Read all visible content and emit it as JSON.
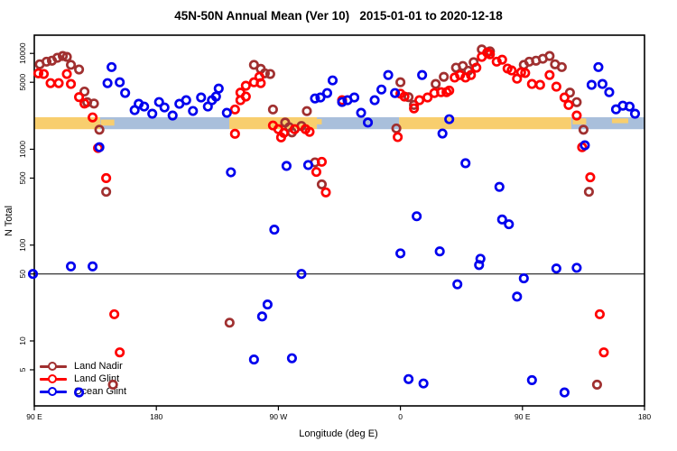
{
  "title": "45N-50N Annual Mean (Ver 10)   2015-01-01 to 2020-12-18",
  "colors": {
    "land_nadir": "#A03030",
    "land_glint": "#FF0000",
    "ocean_glint": "#0000EE",
    "land_band": "#F8CE6E",
    "ocean_band": "#A9BFDB",
    "frame": "#000000",
    "reference_line": "#000000"
  },
  "legend": {
    "items": [
      {
        "label": "Land Nadir",
        "color": "#A03030"
      },
      {
        "label": "Land Glint",
        "color": "#FF0000"
      },
      {
        "label": "Ocean Glint",
        "color": "#0000EE"
      }
    ]
  },
  "chart_data": {
    "type": "scatter",
    "title": "45N-50N Annual Mean (Ver 10)   2015-01-01 to 2020-12-18",
    "xlabel": "Longitude (deg E)",
    "ylabel": "N Total",
    "x_axis": {
      "unit": "deg E",
      "range": [
        90,
        540
      ],
      "ticks": [
        {
          "value": 90,
          "label": "90 E"
        },
        {
          "value": 180,
          "label": "180"
        },
        {
          "value": 270,
          "label": "90 W"
        },
        {
          "value": 360,
          "label": "0"
        },
        {
          "value": 450,
          "label": "90 E"
        },
        {
          "value": 540,
          "label": "180"
        }
      ]
    },
    "y_axis": {
      "scale": "log",
      "range": [
        2.1,
        15500
      ],
      "ticks": [
        5,
        10,
        50,
        100,
        500,
        1000,
        5000,
        10000
      ]
    },
    "reference_line_y": 50,
    "surface_bands": {
      "value_range": [
        1620,
        2160
      ],
      "land_segments_deg": [
        [
          90,
          138.6
        ],
        [
          233.8,
          298.4
        ],
        [
          359,
          486
        ]
      ],
      "ocean_segments_deg": [
        [
          138.6,
          233.8
        ],
        [
          298.4,
          359
        ],
        [
          486,
          540
        ]
      ],
      "land_fragments": [
        {
          "lon": [
            139,
            149
          ],
          "frac": [
            0.2,
            0.7
          ]
        },
        {
          "lon": [
            296,
            302
          ],
          "frac": [
            0.15,
            0.6
          ]
        },
        {
          "lon": [
            487,
            497
          ],
          "frac": [
            0.1,
            0.6
          ]
        },
        {
          "lon": [
            516,
            528
          ],
          "frac": [
            0.1,
            0.5
          ]
        }
      ]
    },
    "series": [
      {
        "name": "Land Nadir",
        "color": "#A03030",
        "points": [
          [
            94,
            7700
          ],
          [
            99,
            8200
          ],
          [
            103,
            8400
          ],
          [
            107,
            9000
          ],
          [
            111,
            9400
          ],
          [
            114,
            9200
          ],
          [
            117,
            7600
          ],
          [
            123,
            6800
          ],
          [
            127,
            4000
          ],
          [
            129,
            3100
          ],
          [
            134,
            3000
          ],
          [
            138,
            1600
          ],
          [
            143,
            360
          ],
          [
            148,
            3.5
          ],
          [
            234,
            15.5
          ],
          [
            252,
            7600
          ],
          [
            257,
            6900
          ],
          [
            260,
            6200
          ],
          [
            264,
            6100
          ],
          [
            266,
            2600
          ],
          [
            275,
            1900
          ],
          [
            278,
            1700
          ],
          [
            280,
            1500
          ],
          [
            287,
            1750
          ],
          [
            291,
            2500
          ],
          [
            297,
            730
          ],
          [
            302,
            430
          ],
          [
            357,
            1650
          ],
          [
            360,
            5000
          ],
          [
            366,
            3500
          ],
          [
            370,
            2900
          ],
          [
            386,
            4800
          ],
          [
            392,
            5700
          ],
          [
            401,
            7100
          ],
          [
            406,
            7400
          ],
          [
            410,
            6600
          ],
          [
            414,
            8100
          ],
          [
            420,
            11000
          ],
          [
            426,
            10500
          ],
          [
            451,
            7600
          ],
          [
            455,
            8200
          ],
          [
            460,
            8400
          ],
          [
            465,
            8800
          ],
          [
            470,
            9400
          ],
          [
            474,
            7700
          ],
          [
            479,
            7200
          ],
          [
            485,
            3900
          ],
          [
            490,
            3100
          ],
          [
            495,
            1600
          ],
          [
            499,
            360
          ],
          [
            505,
            3.5
          ]
        ]
      },
      {
        "name": "Land Glint",
        "color": "#FF0000",
        "points": [
          [
            93,
            6200
          ],
          [
            97,
            6100
          ],
          [
            102,
            4900
          ],
          [
            108,
            4900
          ],
          [
            114,
            6100
          ],
          [
            117,
            4800
          ],
          [
            123,
            3500
          ],
          [
            127,
            3000
          ],
          [
            133,
            2150
          ],
          [
            137,
            1030
          ],
          [
            143,
            500
          ],
          [
            149,
            19
          ],
          [
            153,
            7.6
          ],
          [
            238,
            2600
          ],
          [
            238,
            1450
          ],
          [
            242,
            3900
          ],
          [
            242,
            3250
          ],
          [
            246,
            4600
          ],
          [
            246,
            3550
          ],
          [
            252,
            5000
          ],
          [
            256,
            5700
          ],
          [
            257,
            4900
          ],
          [
            266,
            1770
          ],
          [
            270,
            1620
          ],
          [
            272,
            1330
          ],
          [
            274,
            1480
          ],
          [
            282,
            1620
          ],
          [
            290,
            1620
          ],
          [
            293,
            1520
          ],
          [
            298,
            580
          ],
          [
            302,
            740
          ],
          [
            305,
            355
          ],
          [
            317,
            3250
          ],
          [
            358,
            1340
          ],
          [
            360,
            3800
          ],
          [
            363,
            3550
          ],
          [
            370,
            2670
          ],
          [
            374,
            3250
          ],
          [
            380,
            3470
          ],
          [
            385,
            3860
          ],
          [
            390,
            3940
          ],
          [
            394,
            3940
          ],
          [
            396,
            4100
          ],
          [
            400,
            5600
          ],
          [
            404,
            5950
          ],
          [
            408,
            5600
          ],
          [
            412,
            5950
          ],
          [
            416,
            7100
          ],
          [
            420,
            9200
          ],
          [
            424,
            10200
          ],
          [
            426,
            9800
          ],
          [
            431,
            8200
          ],
          [
            435,
            8600
          ],
          [
            439,
            6950
          ],
          [
            442,
            6650
          ],
          [
            446,
            5450
          ],
          [
            449,
            6350
          ],
          [
            452,
            6250
          ],
          [
            457,
            4800
          ],
          [
            463,
            4700
          ],
          [
            470,
            5950
          ],
          [
            475,
            4500
          ],
          [
            481,
            3470
          ],
          [
            484,
            2900
          ],
          [
            490,
            2250
          ],
          [
            494,
            1050
          ],
          [
            500,
            510
          ],
          [
            507,
            19
          ],
          [
            510,
            7.6
          ]
        ]
      },
      {
        "name": "Ocean Glint",
        "color": "#0000EE",
        "points": [
          [
            89,
            50
          ],
          [
            117,
            60
          ],
          [
            123,
            2.9
          ],
          [
            133,
            60
          ],
          [
            138,
            1050
          ],
          [
            144,
            4900
          ],
          [
            147,
            7200
          ],
          [
            153,
            5000
          ],
          [
            157,
            3870
          ],
          [
            164,
            2560
          ],
          [
            167,
            2980
          ],
          [
            171,
            2790
          ],
          [
            177,
            2350
          ],
          [
            182,
            3110
          ],
          [
            186,
            2730
          ],
          [
            192,
            2250
          ],
          [
            197,
            2980
          ],
          [
            202,
            3250
          ],
          [
            207,
            2510
          ],
          [
            213,
            3470
          ],
          [
            218,
            2790
          ],
          [
            221,
            3250
          ],
          [
            224,
            3550
          ],
          [
            226,
            4300
          ],
          [
            232,
            2400
          ],
          [
            235,
            575
          ],
          [
            252,
            6.4
          ],
          [
            258,
            18
          ],
          [
            262,
            24
          ],
          [
            267,
            145
          ],
          [
            276,
            670
          ],
          [
            280,
            6.6
          ],
          [
            287,
            50
          ],
          [
            292,
            685
          ],
          [
            297,
            3390
          ],
          [
            301,
            3470
          ],
          [
            306,
            3860
          ],
          [
            310,
            5230
          ],
          [
            317,
            3110
          ],
          [
            321,
            3250
          ],
          [
            326,
            3470
          ],
          [
            331,
            2400
          ],
          [
            336,
            1900
          ],
          [
            341,
            3250
          ],
          [
            346,
            4200
          ],
          [
            351,
            5950
          ],
          [
            356,
            3860
          ],
          [
            360,
            82
          ],
          [
            366,
            4.0
          ],
          [
            372,
            200
          ],
          [
            376,
            5950
          ],
          [
            377,
            3.6
          ],
          [
            389,
            86
          ],
          [
            391,
            1460
          ],
          [
            396,
            2060
          ],
          [
            402,
            39
          ],
          [
            408,
            715
          ],
          [
            418,
            62
          ],
          [
            419,
            72
          ],
          [
            433,
            405
          ],
          [
            435,
            185
          ],
          [
            440,
            165
          ],
          [
            446,
            29
          ],
          [
            451,
            45
          ],
          [
            457,
            3.9
          ],
          [
            475,
            57
          ],
          [
            481,
            2.9
          ],
          [
            490,
            58
          ],
          [
            496,
            1100
          ],
          [
            501,
            4700
          ],
          [
            506,
            7200
          ],
          [
            509,
            4800
          ],
          [
            514,
            3940
          ],
          [
            519,
            2610
          ],
          [
            524,
            2850
          ],
          [
            529,
            2790
          ],
          [
            533,
            2350
          ]
        ]
      }
    ]
  }
}
